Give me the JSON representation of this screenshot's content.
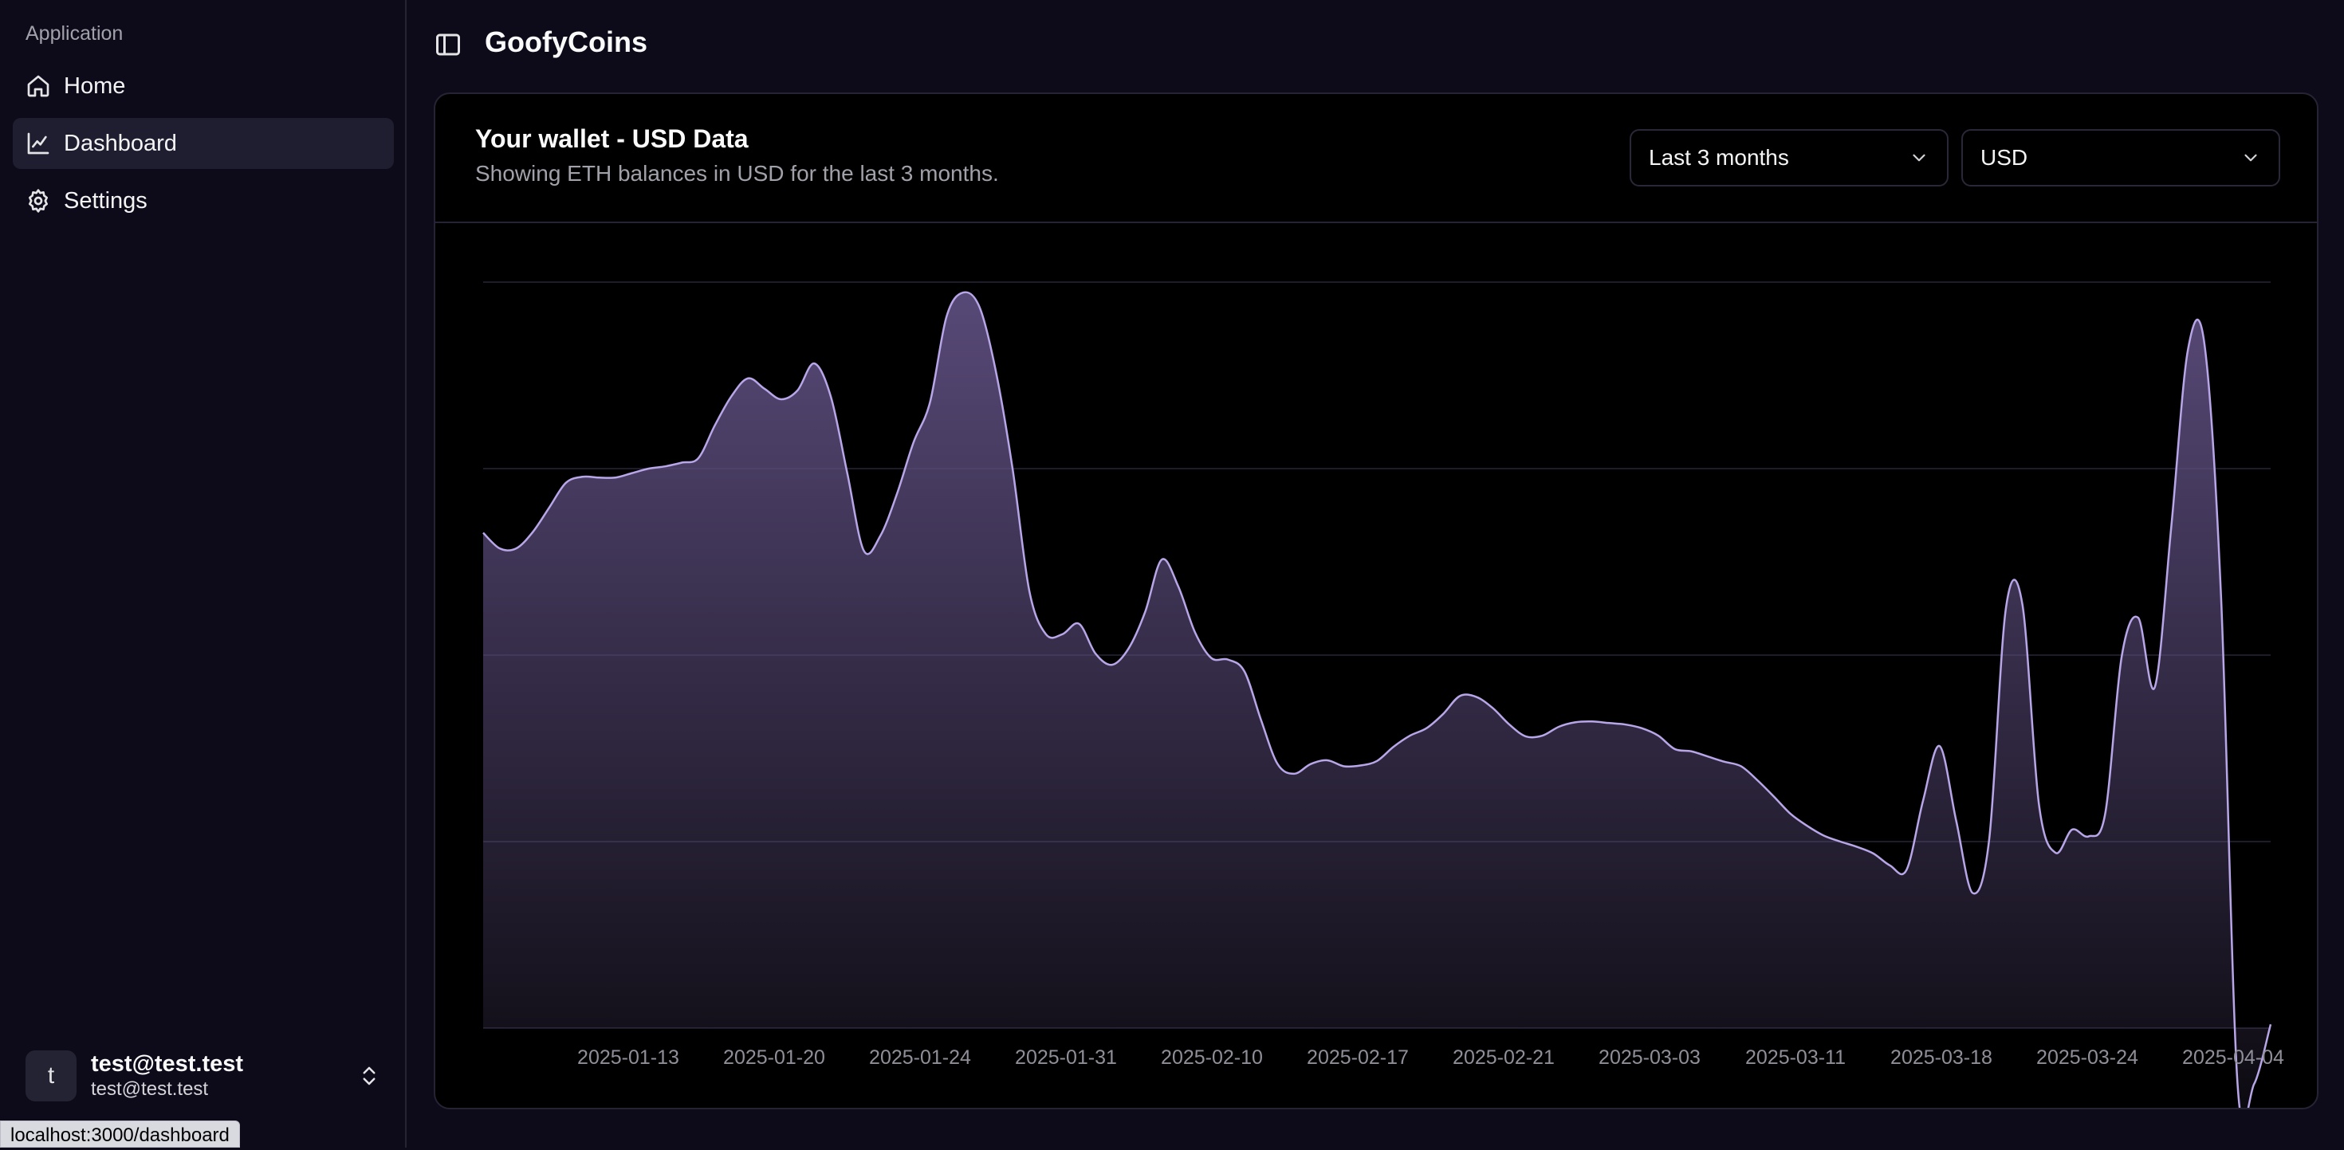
{
  "sidebar": {
    "group_label": "Application",
    "items": [
      {
        "label": "Home",
        "icon": "home-icon"
      },
      {
        "label": "Dashboard",
        "icon": "chart-icon",
        "active": true
      },
      {
        "label": "Settings",
        "icon": "gear-icon"
      }
    ],
    "user": {
      "avatar_letter": "t",
      "name": "test@test.test",
      "email": "test@test.test"
    }
  },
  "status_bar": {
    "url": "localhost:3000/dashboard"
  },
  "header": {
    "title": "GoofyCoins"
  },
  "card": {
    "title": "Your wallet - USD Data",
    "description": "Showing ETH balances in USD for the last 3 months.",
    "range_select": "Last 3 months",
    "currency_select": "USD"
  },
  "colors": {
    "background": "#0d0b1a",
    "card_background": "#000000",
    "series_stroke": "#b8a6e8",
    "series_fill": "#5c4d7d",
    "axis_text": "#8f8f99"
  },
  "chart_data": {
    "type": "area",
    "grid": true,
    "ylim": [
      0,
      100
    ],
    "y_ticks_visible": false,
    "x_tick_labels": [
      "2025-01-13",
      "2025-01-20",
      "2025-01-24",
      "2025-01-31",
      "2025-02-10",
      "2025-02-17",
      "2025-02-21",
      "2025-03-03",
      "2025-03-11",
      "2025-03-18",
      "2025-03-24",
      "2025-04-04"
    ],
    "series": [
      {
        "values": [
          66.4,
          64.3,
          64.3,
          66.5,
          69.8,
          73.1,
          73.9,
          73.8,
          73.8,
          74.4,
          75.0,
          75.3,
          75.8,
          76.4,
          80.8,
          84.7,
          87.1,
          85.7,
          84.3,
          85.5,
          89.1,
          84.7,
          74.4,
          64.0,
          66.0,
          71.6,
          78.5,
          83.9,
          95.4,
          98.6,
          96.6,
          87.8,
          74.8,
          58.6,
          52.8,
          52.8,
          54.2,
          50.2,
          48.7,
          50.9,
          55.8,
          62.8,
          59.2,
          53.1,
          49.6,
          49.4,
          47.8,
          41.3,
          35.4,
          34.1,
          35.4,
          35.9,
          35.1,
          35.2,
          35.8,
          37.7,
          39.2,
          40.2,
          42.1,
          44.5,
          44.4,
          42.9,
          40.7,
          39.1,
          39.2,
          40.4,
          41.0,
          41.1,
          40.9,
          40.7,
          40.2,
          39.2,
          37.4,
          37.1,
          36.4,
          35.7,
          35.1,
          33.2,
          31.0,
          28.7,
          27.1,
          25.8,
          25.0,
          24.3,
          23.4,
          21.8,
          21.2,
          30.5,
          37.8,
          27.8,
          18.1,
          25.4,
          56.2,
          56.8,
          30.0,
          23.5,
          26.6,
          25.7,
          28.7,
          49.8,
          55.0,
          45.7,
          67.3,
          90.9,
          91.7,
          58.0,
          -7.5,
          -7.5,
          0.5
        ]
      }
    ]
  }
}
